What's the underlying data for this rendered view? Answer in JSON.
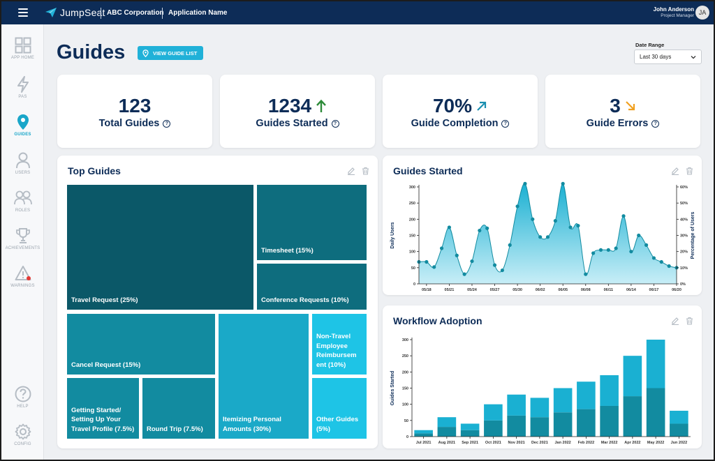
{
  "header": {
    "brand": "JumpSeat",
    "org": "ABC Corporation",
    "app": "Application Name",
    "user_name": "John Anderson",
    "user_role": "Project Manager",
    "user_initials": "JA",
    "colors": {
      "bar": "#0d2c57",
      "accent": "#20b1d8"
    }
  },
  "sidebar": {
    "items": [
      {
        "label": "APP HOME",
        "icon": "grid-icon"
      },
      {
        "label": "PAS",
        "icon": "bolt-icon"
      },
      {
        "label": "GUIDES",
        "icon": "map-pin-icon",
        "active": true
      },
      {
        "label": "USERS",
        "icon": "user-icon"
      },
      {
        "label": "ROLES",
        "icon": "users-icon"
      },
      {
        "label": "ACHIEVEMENTS",
        "icon": "trophy-icon"
      },
      {
        "label": "WARNINGS",
        "icon": "warning-icon"
      },
      {
        "label": "HELP",
        "icon": "help-icon"
      },
      {
        "label": "CONFIG",
        "icon": "gear-icon"
      }
    ]
  },
  "page": {
    "title": "Guides",
    "view_button": "VIEW GUIDE LIST",
    "date_range_label": "Date Range",
    "date_range_value": "Last 30 days"
  },
  "kpis": [
    {
      "value": "123",
      "label": "Total Guides",
      "arrow": "none"
    },
    {
      "value": "1234",
      "label": "Guides Started",
      "arrow": "up",
      "arrow_color": "#2e8b3a"
    },
    {
      "value": "70%",
      "label": "Guide Completion",
      "arrow": "up-right",
      "arrow_color": "#1a8fb0"
    },
    {
      "value": "3",
      "label": "Guide Errors",
      "arrow": "down-right",
      "arrow_color": "#f0a020"
    }
  ],
  "top_guides": {
    "title": "Top Guides",
    "tiles": [
      {
        "label": "Travel Request (25%)",
        "color": "#0b5868"
      },
      {
        "label": "Timesheet (15%)",
        "color": "#0e6d7e"
      },
      {
        "label": "Conference Requests (10%)",
        "color": "#0e6d7e"
      },
      {
        "label": "Cancel Request (15%)",
        "color": "#128ba0"
      },
      {
        "label": "Getting Started/ Setting Up Your Travel Profile (7.5%)",
        "color": "#128ba0"
      },
      {
        "label": "Round Trip (7.5%)",
        "color": "#128ba0"
      },
      {
        "label": "Itemizing Personal Amounts (30%)",
        "color": "#1aa9c8"
      },
      {
        "label": "Non-Travel Employee Reimbursem ent (10%)",
        "color": "#1ec4e6"
      },
      {
        "label": "Other Guides (5%)",
        "color": "#1ec4e6"
      }
    ]
  },
  "guides_started": {
    "title": "Guides Started"
  },
  "workflow_adoption": {
    "title": "Workflow Adoption"
  },
  "chart_data": [
    {
      "type": "area",
      "title": "Guides Started",
      "xlabel": "",
      "ylabel": "Daily Users",
      "y2label": "Percentage of Users",
      "ylim": [
        0,
        300
      ],
      "y_ticks": [
        0,
        50,
        100,
        150,
        200,
        250,
        300
      ],
      "y2lim": [
        0,
        60
      ],
      "y2_ticks": [
        "0%",
        "10%",
        "20%",
        "30%",
        "40%",
        "50%",
        "60%"
      ],
      "x_ticks": [
        "05/18",
        "05/21",
        "05/24",
        "05/27",
        "05/30",
        "06/02",
        "06/05",
        "06/08",
        "06/11",
        "06/14",
        "06/17",
        "06/20"
      ],
      "x": [
        "05/17",
        "05/18",
        "05/19",
        "05/20",
        "05/21",
        "05/22",
        "05/23",
        "05/24",
        "05/25",
        "05/26",
        "05/27",
        "05/28",
        "05/29",
        "05/30",
        "05/31",
        "06/01",
        "06/02",
        "06/03",
        "06/04",
        "06/05",
        "06/06",
        "06/07",
        "06/08",
        "06/09",
        "06/10",
        "06/11",
        "06/12",
        "06/13",
        "06/14",
        "06/15",
        "06/16",
        "06/17",
        "06/18",
        "06/19",
        "06/20"
      ],
      "values": [
        68,
        68,
        52,
        110,
        175,
        88,
        30,
        70,
        165,
        172,
        58,
        42,
        120,
        240,
        310,
        200,
        145,
        145,
        195,
        310,
        175,
        180,
        30,
        95,
        105,
        105,
        110,
        210,
        100,
        150,
        120,
        80,
        68,
        55,
        50
      ],
      "grid": false,
      "marker": "dot"
    },
    {
      "type": "bar",
      "title": "Workflow Adoption",
      "xlabel": "",
      "ylabel": "Guides Started",
      "ylim": [
        0,
        300
      ],
      "y_ticks": [
        0,
        50,
        100,
        150,
        200,
        250,
        300
      ],
      "stacked": true,
      "categories": [
        "Jul 2021",
        "Aug 2021",
        "Sep 2021",
        "Oct 2021",
        "Nov 2021",
        "Dec 2021",
        "Jan 2022",
        "Feb 2022",
        "Mar 2022",
        "Apr 2022",
        "May 2022",
        "Jun 2022"
      ],
      "series": [
        {
          "values": [
            10,
            30,
            20,
            50,
            65,
            60,
            75,
            85,
            95,
            125,
            150,
            40
          ],
          "color": "#128ba0"
        },
        {
          "values": [
            10,
            30,
            20,
            50,
            65,
            60,
            75,
            85,
            95,
            125,
            150,
            40
          ],
          "color": "#1ab0d2"
        }
      ],
      "totals": [
        20,
        60,
        40,
        100,
        130,
        120,
        150,
        170,
        190,
        250,
        300,
        80
      ],
      "grid": false
    }
  ]
}
